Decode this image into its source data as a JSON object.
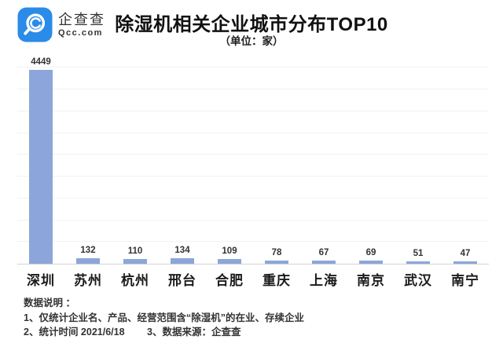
{
  "header": {
    "brand_cn": "企查查",
    "brand_en": "Qcc.com",
    "brand_color": "#2A8BE8",
    "title": "除湿机相关企业城市分布TOP10",
    "subtitle": "（单位：家）"
  },
  "chart_data": {
    "type": "bar",
    "title": "除湿机相关企业城市分布TOP10",
    "unit": "家",
    "categories": [
      "深圳",
      "苏州",
      "杭州",
      "邢台",
      "合肥",
      "重庆",
      "上海",
      "南京",
      "武汉",
      "南宁"
    ],
    "values": [
      4449,
      132,
      110,
      134,
      109,
      78,
      67,
      69,
      51,
      47
    ],
    "bar_color": "#8CA6DB",
    "ylim": [
      0,
      4500
    ],
    "gridline_step": 500,
    "grid": true,
    "value_labels": true,
    "legend": "none",
    "y_axis_labels": "hidden"
  },
  "footer": {
    "heading": "数据说明 ：",
    "line1": "1、仅统计企业名、产品、经营范围含“除湿机”的在业、存续企业",
    "line2": "2、统计时间 2021/6/18　　 3、数据来源：企查查"
  }
}
